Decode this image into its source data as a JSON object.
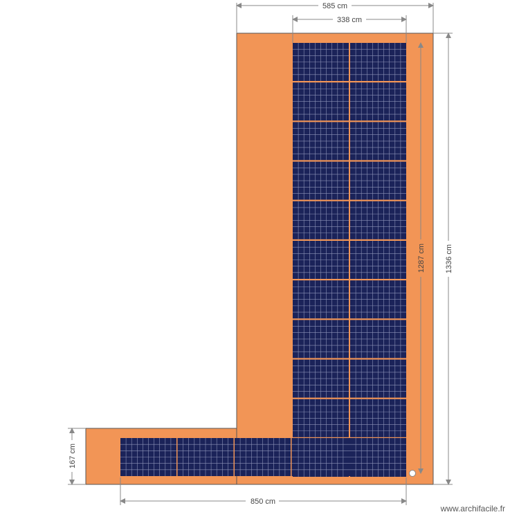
{
  "colors": {
    "roof": "#f29556",
    "roof_outline": "#555555",
    "panel": "#1b2359",
    "panel_grid": "#8d93b8",
    "dimension": "#888888"
  },
  "dimensions": {
    "top_outer": "585 cm",
    "top_inner": "338 cm",
    "right_outer": "1336 cm",
    "right_inner": "1287 cm",
    "bottom": "850 cm",
    "left": "167 cm"
  },
  "panel_counts": {
    "vertical_rows": 11,
    "vertical_columns": 2,
    "horizontal_columns": 5
  },
  "watermark": "www.archifacile.fr"
}
